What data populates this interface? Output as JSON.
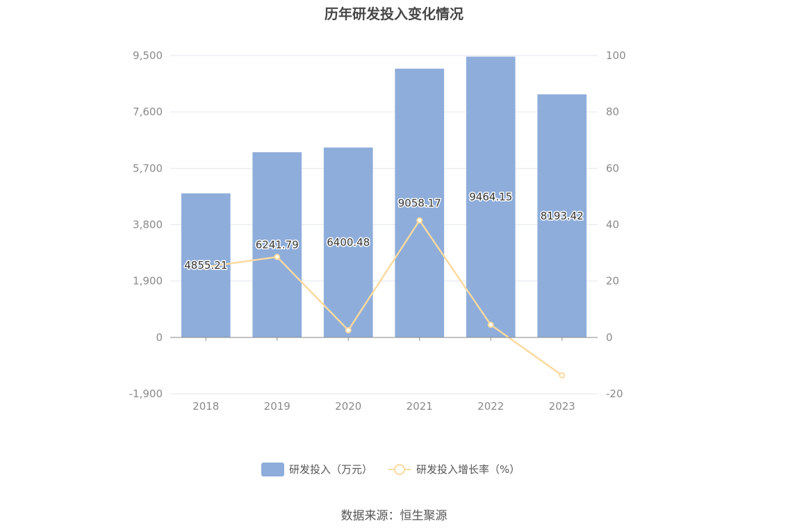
{
  "title": "历年研发投入变化情况",
  "source": "数据来源：恒生聚源",
  "chart_data": {
    "type": "bar",
    "categories": [
      "2018",
      "2019",
      "2020",
      "2021",
      "2022",
      "2023"
    ],
    "series": [
      {
        "name": "研发投入（万元）",
        "type": "bar",
        "axis": "left",
        "values": [
          4855.21,
          6241.79,
          6400.48,
          9058.17,
          9464.15,
          8193.42
        ],
        "labels": [
          "4855.21",
          "6241.79",
          "6400.48",
          "9058.17",
          "9464.15",
          "8193.42"
        ],
        "color": "#8eadda"
      },
      {
        "name": "研发投入增长率（%）",
        "type": "line",
        "axis": "right",
        "values": [
          25.0,
          28.56,
          2.54,
          41.52,
          4.48,
          -13.43
        ],
        "color": "#fbd99f"
      }
    ],
    "y_left": {
      "min": -1900,
      "max": 9500,
      "ticks": [
        "9,500",
        "7,600",
        "5,700",
        "3,800",
        "1,900",
        "0",
        "-1,900"
      ]
    },
    "y_right": {
      "min": -20,
      "max": 100,
      "ticks": [
        "100",
        "80",
        "60",
        "40",
        "20",
        "0",
        "-20"
      ]
    },
    "grid": true,
    "legend_position": "bottom"
  }
}
